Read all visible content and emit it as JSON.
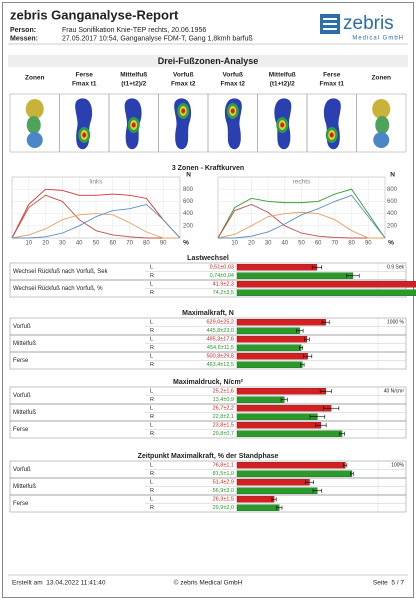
{
  "header": {
    "title": "zebris Ganganalyse-Report",
    "person_label": "Person:",
    "person": "Frau Sonifikation Knie-TEP rechts, 20.06.1956",
    "messen_label": "Messen:",
    "messen": "27.05.2017 10:54, Ganganalyse FDM-T, Gang 1,8kmh barfuß",
    "logo": "zebris",
    "logo_sub": "Medical GmbH"
  },
  "zones": {
    "title": "Drei-Fußzonen-Analyse",
    "columns": [
      [
        "Zonen"
      ],
      [
        "Ferse",
        "Fmax t1"
      ],
      [
        "Mittelfuß",
        "(t1+t2)/2"
      ],
      [
        "Vorfuß",
        "Fmax t2"
      ],
      [
        "Vorfuß",
        "Fmax t2"
      ],
      [
        "Mittelfuß",
        "(t1+t2)/2"
      ],
      [
        "Ferse",
        "Fmax t1"
      ],
      [
        "Zonen"
      ]
    ]
  },
  "curves": {
    "title": "3 Zonen - Kraftkurven",
    "x_unit": "%",
    "y_unit": "N",
    "xlim": [
      0,
      100
    ],
    "ylim": [
      0,
      1000
    ],
    "xticks": [
      10,
      20,
      30,
      40,
      50,
      60,
      70,
      80,
      90
    ],
    "yticks": [
      200,
      400,
      600,
      800
    ],
    "x": [
      0,
      10,
      20,
      30,
      40,
      50,
      60,
      70,
      80,
      90,
      100
    ],
    "charts": [
      {
        "title": "links",
        "series": [
          {
            "color": "#e03030",
            "values": [
              0,
              550,
              800,
              780,
              700,
              700,
              720,
              700,
              650,
              300,
              0
            ]
          },
          {
            "color": "#c0504d",
            "values": [
              0,
              500,
              700,
              600,
              300,
              120,
              50,
              20,
              0,
              0,
              0
            ]
          },
          {
            "color": "#e8a060",
            "values": [
              0,
              50,
              150,
              300,
              380,
              400,
              380,
              250,
              100,
              0,
              0
            ]
          },
          {
            "color": "#5b8fc8",
            "values": [
              0,
              0,
              20,
              80,
              200,
              350,
              450,
              480,
              550,
              300,
              0
            ]
          }
        ]
      },
      {
        "title": "rechts",
        "series": [
          {
            "color": "#30a030",
            "values": [
              0,
              500,
              650,
              600,
              580,
              580,
              600,
              720,
              800,
              400,
              0
            ]
          },
          {
            "color": "#c0504d",
            "values": [
              0,
              450,
              550,
              420,
              200,
              80,
              30,
              10,
              0,
              0,
              0
            ]
          },
          {
            "color": "#e8a060",
            "values": [
              0,
              60,
              200,
              350,
              400,
              420,
              400,
              300,
              120,
              0,
              0
            ]
          },
          {
            "color": "#5b8fc8",
            "values": [
              0,
              0,
              30,
              100,
              230,
              380,
              480,
              600,
              700,
              350,
              0
            ]
          }
        ]
      }
    ]
  },
  "sections": [
    {
      "title": "Lastwechsel",
      "xlim": [
        0,
        0.9
      ],
      "scale": {
        "value": 0.9,
        "label": "0.9 Sek"
      },
      "rows": [
        {
          "label": "Wechsel Rückfuß nach Vorfuß, Sek",
          "sides": [
            {
              "side": "L",
              "value": 0.51,
              "error": 0.03,
              "value_label": "0,51±0,03"
            },
            {
              "side": "R",
              "value": 0.74,
              "error": 0.04,
              "value_label": "0,74±0,04"
            }
          ]
        },
        {
          "label": "Wechsel Rückfuß nach Vorfuß, %",
          "sides": [
            {
              "side": "L",
              "value": 41.9,
              "error": 2.3,
              "value_label": "41,9±2,3"
            },
            {
              "side": "R",
              "value": 74.2,
              "error": 3.5,
              "value_label": "74,2±3,5"
            }
          ]
        }
      ]
    },
    {
      "title": "Maximalkraft, N",
      "xlim": [
        0,
        1000
      ],
      "scale": {
        "value": 1000,
        "label": "1000 %"
      },
      "rows": [
        {
          "label": "Vorfuß",
          "sides": [
            {
              "side": "L",
              "value": 629.0,
              "error": 25.2,
              "value_label": "629,0±25,2"
            },
            {
              "side": "R",
              "value": 445.8,
              "error": 23.0,
              "value_label": "445,8±23,0"
            }
          ]
        },
        {
          "label": "Mittelfuß",
          "sides": [
            {
              "side": "L",
              "value": 495.3,
              "error": 17.6,
              "value_label": "495,3±17,6"
            },
            {
              "side": "R",
              "value": 454.6,
              "error": 11.5,
              "value_label": "454,6±11,5"
            }
          ]
        },
        {
          "label": "Ferse",
          "sides": [
            {
              "side": "L",
              "value": 500.8,
              "error": 29.8,
              "value_label": "500,8±29,8"
            },
            {
              "side": "R",
              "value": 463.4,
              "error": 12.5,
              "value_label": "463,4±12,5"
            }
          ]
        }
      ]
    },
    {
      "title": "Maximaldruck, N/cm²",
      "xlim": [
        0,
        40
      ],
      "scale": {
        "value": 40,
        "label": "40 N/cm²"
      },
      "rows": [
        {
          "label": "Vorfuß",
          "sides": [
            {
              "side": "L",
              "value": 25.2,
              "error": 1.6,
              "value_label": "25,2±1,6"
            },
            {
              "side": "R",
              "value": 13.4,
              "error": 0.9,
              "value_label": "13,4±0,9"
            }
          ]
        },
        {
          "label": "Mittelfuß",
          "sides": [
            {
              "side": "L",
              "value": 26.7,
              "error": 2.2,
              "value_label": "26,7±2,2"
            },
            {
              "side": "R",
              "value": 22.8,
              "error": 2.1,
              "value_label": "22,8±2,1"
            }
          ]
        },
        {
          "label": "Ferse",
          "sides": [
            {
              "side": "L",
              "value": 23.8,
              "error": 1.5,
              "value_label": "23,8±1,5"
            },
            {
              "side": "R",
              "value": 29.8,
              "error": 0.7,
              "value_label": "29,8±0,7"
            }
          ]
        }
      ]
    },
    {
      "title": "Zeitpunkt Maximalkraft, % der Standphase",
      "xlim": [
        0,
        100
      ],
      "scale": {
        "value": 100,
        "label": "100%"
      },
      "rows": [
        {
          "label": "Vorfuß",
          "sides": [
            {
              "side": "L",
              "value": 76.8,
              "error": 1.1,
              "value_label": "76,8±1,1"
            },
            {
              "side": "R",
              "value": 81.5,
              "error": 1.0,
              "value_label": "81,5±1,0"
            }
          ]
        },
        {
          "label": "Mittelfuß",
          "sides": [
            {
              "side": "L",
              "value": 51.4,
              "error": 2.9,
              "value_label": "51,4±2,9"
            },
            {
              "side": "R",
              "value": 56.9,
              "error": 3.0,
              "value_label": "56,9±3,0"
            }
          ]
        },
        {
          "label": "Ferse",
          "sides": [
            {
              "side": "L",
              "value": 26.3,
              "error": 1.5,
              "value_label": "26,3±1,5"
            },
            {
              "side": "R",
              "value": 29.9,
              "error": 2.0,
              "value_label": "29,9±2,0"
            }
          ]
        }
      ]
    }
  ],
  "footer": {
    "created": "Erstellt am  13.04.2022 11:41:40",
    "copyright": "© zebris Medical GmbH",
    "page": "Seite  5 / 7"
  }
}
